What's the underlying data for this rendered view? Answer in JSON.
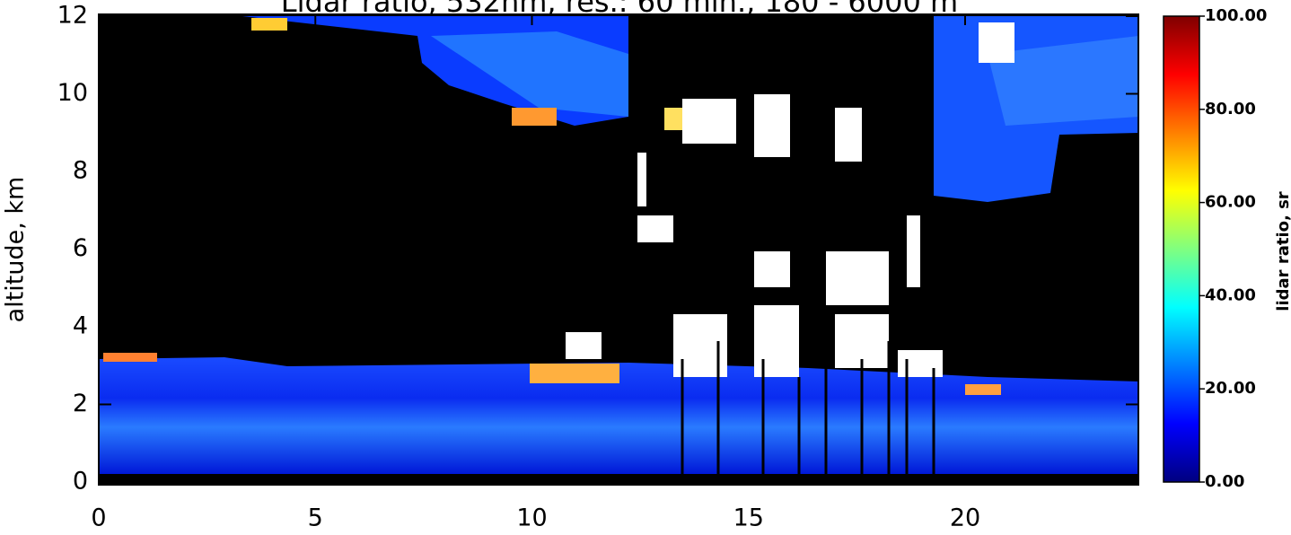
{
  "chart_data": {
    "type": "heatmap",
    "title": "Lidar ratio, 532nm, res.: 60 min., 180 - 6000 m",
    "y_label": "altitude, km",
    "xlim": [
      0,
      24
    ],
    "xticks": [
      0,
      5,
      10,
      15,
      20
    ],
    "ylim": [
      0,
      12
    ],
    "yticks": [
      0,
      2,
      4,
      6,
      8,
      10,
      12
    ],
    "colorbar_label": "lidar ratio, sr",
    "zlim": [
      0,
      100
    ],
    "zticks": [
      {
        "value": 0,
        "label": "0.00"
      },
      {
        "value": 20,
        "label": "20.00"
      },
      {
        "value": 40,
        "label": "40.00"
      },
      {
        "value": 60,
        "label": "60.00"
      },
      {
        "value": 80,
        "label": "80.00"
      },
      {
        "value": 100,
        "label": "100.00"
      }
    ]
  }
}
